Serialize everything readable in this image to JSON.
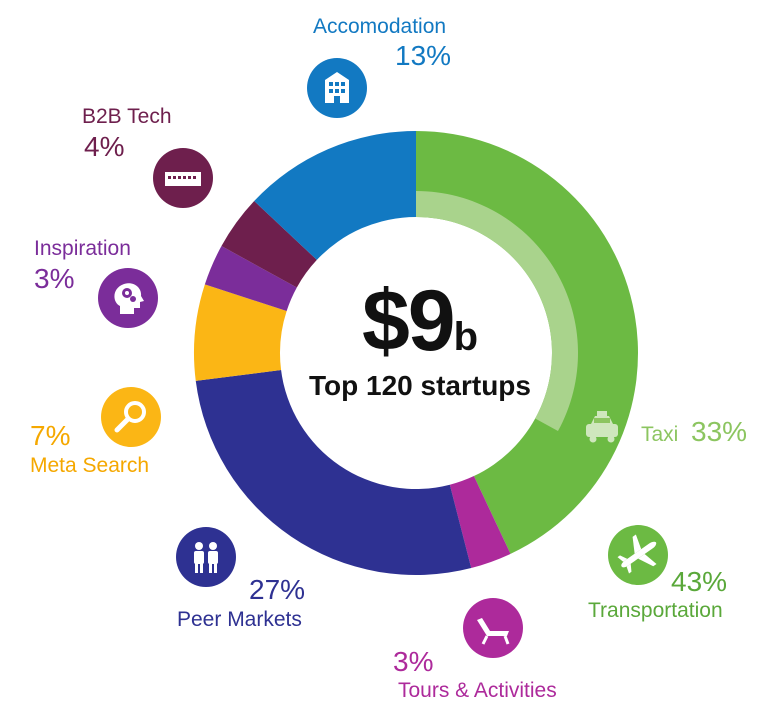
{
  "center": {
    "amount": "$9",
    "amount_suffix": "b",
    "subtitle": "Top 120 startups"
  },
  "chart_data": {
    "type": "pie",
    "style": "donut",
    "total_label": "$9b",
    "subtitle": "Top 120 startups",
    "slices": [
      {
        "label": "Transportation",
        "value": 43,
        "display": "43%",
        "color": "#6cba43",
        "sub": {
          "label": "Taxi",
          "value": 33,
          "display": "33%",
          "color": "#a9d38c"
        }
      },
      {
        "label": "Tours & Activities",
        "value": 3,
        "display": "3%",
        "color": "#ad2a9b"
      },
      {
        "label": "Peer Markets",
        "value": 27,
        "display": "27%",
        "color": "#2e3192"
      },
      {
        "label": "Meta Search",
        "value": 7,
        "display": "7%",
        "color": "#fbb615"
      },
      {
        "label": "Inspiration",
        "value": 3,
        "display": "3%",
        "color": "#7b2d9a"
      },
      {
        "label": "B2B Tech",
        "value": 4,
        "display": "4%",
        "color": "#6e1f4d"
      },
      {
        "label": "Accomodation",
        "value": 13,
        "display": "13%",
        "color": "#1279c2"
      }
    ]
  },
  "labels": {
    "accomodation": {
      "name": "Accomodation",
      "pct": "13%",
      "icon": "building-icon",
      "color": "#1279c2"
    },
    "b2b": {
      "name": "B2B Tech",
      "pct": "4%",
      "icon": "computer-icon",
      "color": "#6e1f4d"
    },
    "inspiration": {
      "name": "Inspiration",
      "pct": "3%",
      "icon": "head-gears-icon",
      "color": "#7b2d9a"
    },
    "meta": {
      "name": "Meta Search",
      "pct": "7%",
      "icon": "magnifier-icon",
      "color": "#f5a800"
    },
    "peer": {
      "name": "Peer Markets",
      "pct": "27%",
      "icon": "people-icon",
      "color": "#2e3192"
    },
    "tours": {
      "name": "Tours & Activities",
      "pct": "3%",
      "icon": "beach-chair-icon",
      "color": "#ad2a9b"
    },
    "transport": {
      "name": "Transportation",
      "pct": "43%",
      "icon": "airplane-icon",
      "color": "#5aa83a"
    },
    "taxi": {
      "name": "Taxi",
      "pct": "33%",
      "icon": "taxi-icon",
      "color": "#8cc560"
    }
  }
}
